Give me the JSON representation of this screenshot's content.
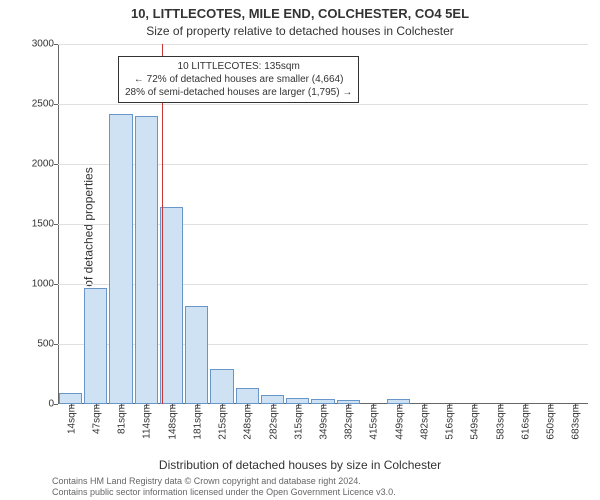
{
  "chart": {
    "type": "histogram",
    "title_line1": "10, LITTLECOTES, MILE END, COLCHESTER, CO4 5EL",
    "title_line2": "Size of property relative to detached houses in Colchester",
    "xlabel": "Distribution of detached houses by size in Colchester",
    "ylabel": "Number of detached properties",
    "background_color": "#ffffff",
    "grid_color": "#e0e0e0",
    "axis_color": "#666666",
    "text_color": "#333333",
    "title_fontsize": 13,
    "subtitle_fontsize": 12,
    "label_fontsize": 12,
    "tick_fontsize": 10,
    "ylim": [
      0,
      3000
    ],
    "ytick_step": 500,
    "categories": [
      "14sqm",
      "47sqm",
      "81sqm",
      "114sqm",
      "148sqm",
      "181sqm",
      "215sqm",
      "248sqm",
      "282sqm",
      "315sqm",
      "349sqm",
      "382sqm",
      "415sqm",
      "449sqm",
      "482sqm",
      "516sqm",
      "549sqm",
      "583sqm",
      "616sqm",
      "650sqm",
      "683sqm"
    ],
    "values": [
      90,
      970,
      2420,
      2400,
      1640,
      820,
      290,
      130,
      75,
      50,
      40,
      30,
      0,
      40,
      0,
      0,
      0,
      0,
      0,
      0,
      0
    ],
    "bar_fill": "#cfe2f3",
    "bar_border": "#6896c8",
    "bar_width_ratio": 0.92,
    "marker": {
      "position_sqm": 135,
      "color": "#cc3333"
    },
    "annotation": {
      "line1": "10 LITTLECOTES: 135sqm",
      "line2": "← 72% of detached houses are smaller (4,664)",
      "line3": "28% of semi-detached houses are larger (1,795) →",
      "border_color": "#333333",
      "bg_color": "#ffffff"
    },
    "credit_line1": "Contains HM Land Registry data © Crown copyright and database right 2024.",
    "credit_line2": "Contains public sector information licensed under the Open Government Licence v3.0."
  }
}
